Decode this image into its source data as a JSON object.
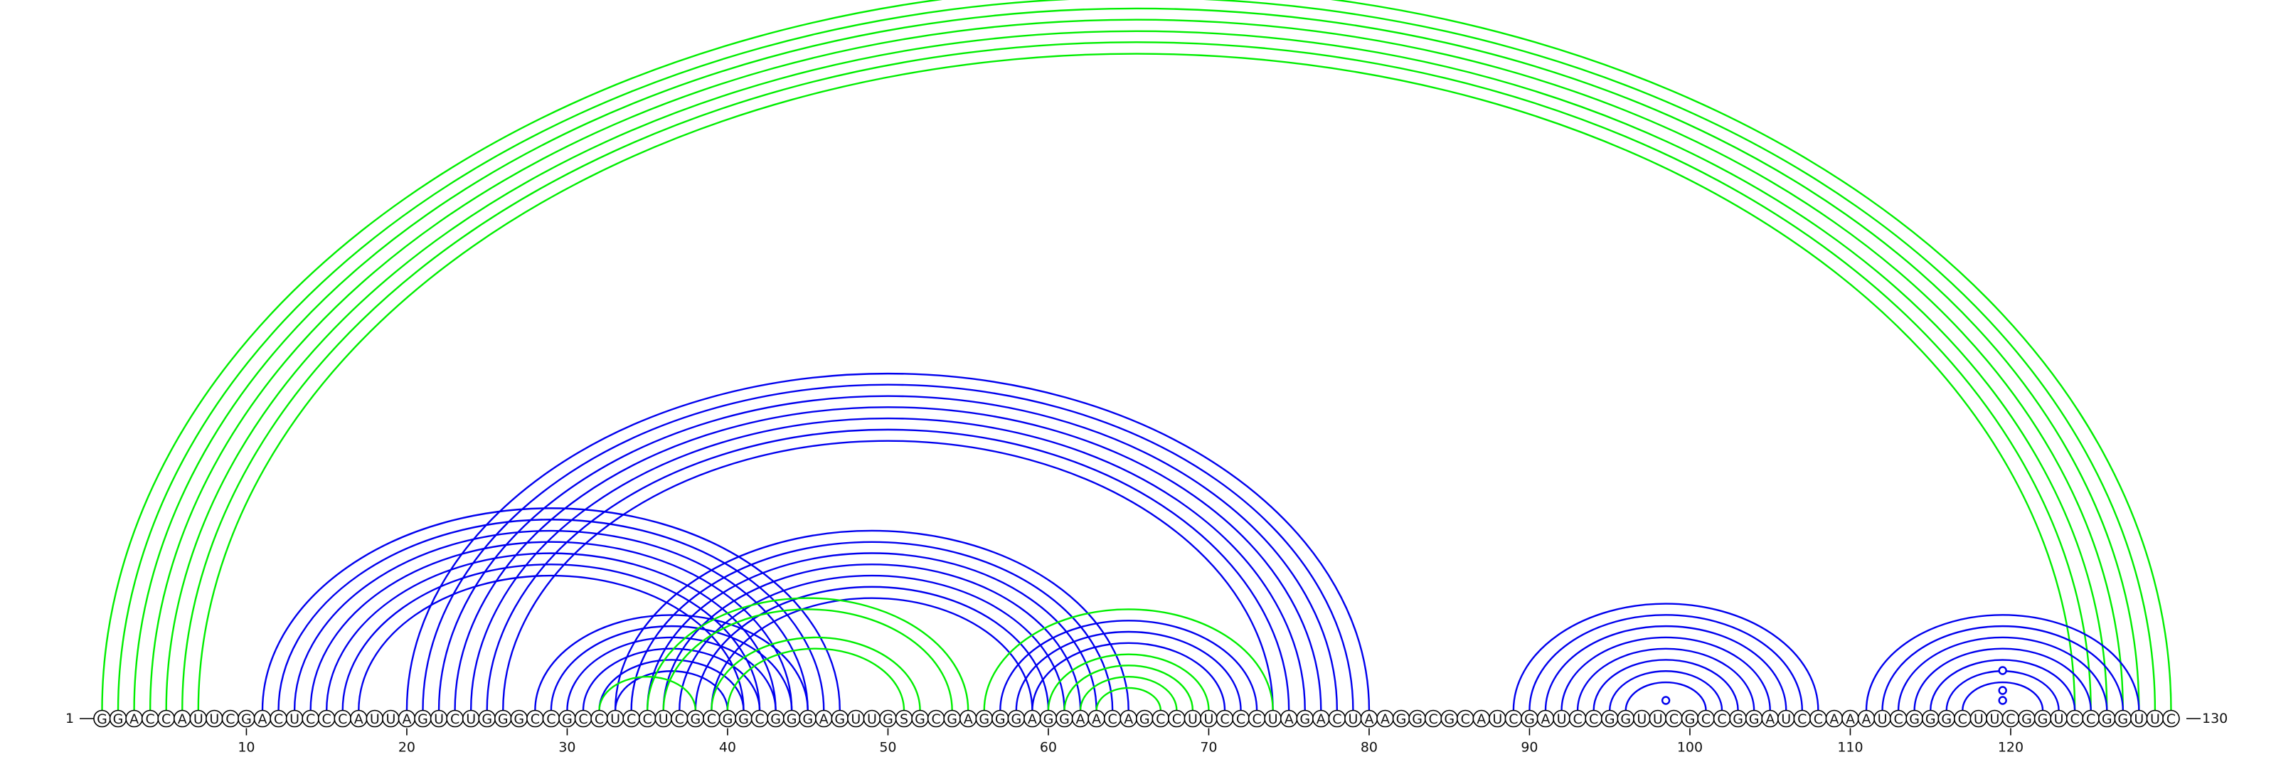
{
  "sequence": "GGACCAUUCGACUCCCAUUAGUCUGGGCCGCCUCCUCGCGGCGGGAGUUGSGCGAGGGAGGAACAGCCUUCCCUAGACUAAGGCGCAUCGAUCCGGUUCGCCGGAUCCAAAUCGGGCUUCGGUCCGGUUC",
  "start_label": "1",
  "end_label": "130",
  "ticks": [
    10,
    20,
    30,
    40,
    50,
    60,
    70,
    80,
    90,
    100,
    110,
    120
  ],
  "colors": {
    "blue": "#0000ee",
    "green": "#00ee00",
    "black": "#000000"
  },
  "arcs": [
    {
      "i": 1,
      "j": 130,
      "color": "green"
    },
    {
      "i": 2,
      "j": 129,
      "color": "green"
    },
    {
      "i": 3,
      "j": 128,
      "color": "green"
    },
    {
      "i": 4,
      "j": 127,
      "color": "green"
    },
    {
      "i": 5,
      "j": 126,
      "color": "green"
    },
    {
      "i": 6,
      "j": 125,
      "color": "green"
    },
    {
      "i": 7,
      "j": 124,
      "color": "green"
    },
    {
      "i": 11,
      "j": 47,
      "color": "blue"
    },
    {
      "i": 12,
      "j": 46,
      "color": "blue"
    },
    {
      "i": 13,
      "j": 45,
      "color": "blue"
    },
    {
      "i": 14,
      "j": 44,
      "color": "blue"
    },
    {
      "i": 15,
      "j": 43,
      "color": "blue"
    },
    {
      "i": 16,
      "j": 42,
      "color": "blue"
    },
    {
      "i": 17,
      "j": 41,
      "color": "blue"
    },
    {
      "i": 20,
      "j": 80,
      "color": "blue"
    },
    {
      "i": 21,
      "j": 79,
      "color": "blue"
    },
    {
      "i": 22,
      "j": 78,
      "color": "blue"
    },
    {
      "i": 23,
      "j": 77,
      "color": "blue"
    },
    {
      "i": 24,
      "j": 76,
      "color": "blue"
    },
    {
      "i": 25,
      "j": 75,
      "color": "blue"
    },
    {
      "i": 26,
      "j": 74,
      "color": "blue"
    },
    {
      "i": 28,
      "j": 45,
      "color": "blue"
    },
    {
      "i": 29,
      "j": 44,
      "color": "blue"
    },
    {
      "i": 30,
      "j": 43,
      "color": "blue"
    },
    {
      "i": 31,
      "j": 42,
      "color": "blue"
    },
    {
      "i": 32,
      "j": 41,
      "color": "blue"
    },
    {
      "i": 33,
      "j": 40,
      "color": "blue"
    },
    {
      "i": 33,
      "j": 65,
      "color": "blue"
    },
    {
      "i": 34,
      "j": 64,
      "color": "blue"
    },
    {
      "i": 35,
      "j": 63,
      "color": "blue"
    },
    {
      "i": 36,
      "j": 62,
      "color": "blue"
    },
    {
      "i": 37,
      "j": 61,
      "color": "blue"
    },
    {
      "i": 38,
      "j": 60,
      "color": "blue"
    },
    {
      "i": 39,
      "j": 59,
      "color": "blue"
    },
    {
      "i": 32,
      "j": 38,
      "color": "green"
    },
    {
      "i": 35,
      "j": 55,
      "color": "green"
    },
    {
      "i": 36,
      "j": 54,
      "color": "green"
    },
    {
      "i": 39,
      "j": 52,
      "color": "green"
    },
    {
      "i": 40,
      "j": 51,
      "color": "green"
    },
    {
      "i": 56,
      "j": 74,
      "color": "green"
    },
    {
      "i": 57,
      "j": 73,
      "color": "blue"
    },
    {
      "i": 58,
      "j": 72,
      "color": "blue"
    },
    {
      "i": 59,
      "j": 71,
      "color": "blue"
    },
    {
      "i": 60,
      "j": 70,
      "color": "green"
    },
    {
      "i": 61,
      "j": 69,
      "color": "green"
    },
    {
      "i": 62,
      "j": 68,
      "color": "green"
    },
    {
      "i": 63,
      "j": 67,
      "color": "green"
    },
    {
      "i": 89,
      "j": 108,
      "color": "blue"
    },
    {
      "i": 90,
      "j": 107,
      "color": "blue"
    },
    {
      "i": 91,
      "j": 106,
      "color": "blue"
    },
    {
      "i": 92,
      "j": 105,
      "color": "blue"
    },
    {
      "i": 93,
      "j": 104,
      "color": "blue"
    },
    {
      "i": 94,
      "j": 103,
      "color": "blue"
    },
    {
      "i": 95,
      "j": 102,
      "color": "blue"
    },
    {
      "i": 96,
      "j": 101,
      "color": "blue"
    },
    {
      "i": 111,
      "j": 128,
      "color": "blue"
    },
    {
      "i": 112,
      "j": 127,
      "color": "blue"
    },
    {
      "i": 113,
      "j": 126,
      "color": "blue"
    },
    {
      "i": 114,
      "j": 125,
      "color": "blue"
    },
    {
      "i": 115,
      "j": 124,
      "color": "blue"
    },
    {
      "i": 116,
      "j": 123,
      "color": "blue"
    },
    {
      "i": 117,
      "j": 122,
      "color": "blue"
    }
  ],
  "markers": [
    {
      "pos": 98.5,
      "height": 1,
      "color": "blue"
    },
    {
      "pos": 119.5,
      "height": 1,
      "color": "blue"
    },
    {
      "pos": 119.5,
      "height": 2,
      "color": "blue"
    },
    {
      "pos": 119.5,
      "height": 4,
      "color": "blue"
    }
  ]
}
